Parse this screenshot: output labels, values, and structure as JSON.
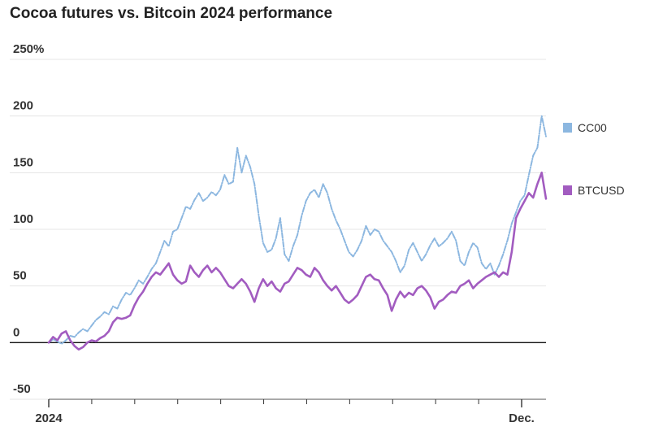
{
  "chart_data": {
    "type": "line",
    "title": "Cocoa futures vs. Bitcoin 2024 performance",
    "xlabel": "",
    "ylabel": "",
    "ylim": [
      -50,
      250
    ],
    "yticks": [
      -50,
      0,
      50,
      100,
      150,
      200,
      250
    ],
    "ytick_labels": [
      "-50",
      "0",
      "50",
      "100",
      "150",
      "200",
      "250%"
    ],
    "xtick_labels": [
      "2024",
      "Dec."
    ],
    "x_month_ticks": 12,
    "x_range_months": [
      0,
      11.6
    ],
    "grid": true,
    "legend_placement": "right",
    "series": [
      {
        "name": "CC00",
        "color": "#8cb7e0",
        "points": [
          [
            0,
            0
          ],
          [
            0.1,
            3
          ],
          [
            0.2,
            1
          ],
          [
            0.3,
            -1
          ],
          [
            0.4,
            2
          ],
          [
            0.5,
            6
          ],
          [
            0.6,
            5
          ],
          [
            0.7,
            9
          ],
          [
            0.8,
            12
          ],
          [
            0.9,
            10
          ],
          [
            1.0,
            15
          ],
          [
            1.1,
            20
          ],
          [
            1.2,
            23
          ],
          [
            1.3,
            27
          ],
          [
            1.4,
            25
          ],
          [
            1.5,
            32
          ],
          [
            1.6,
            30
          ],
          [
            1.7,
            38
          ],
          [
            1.8,
            44
          ],
          [
            1.9,
            42
          ],
          [
            2.0,
            48
          ],
          [
            2.1,
            55
          ],
          [
            2.2,
            52
          ],
          [
            2.3,
            58
          ],
          [
            2.4,
            65
          ],
          [
            2.5,
            70
          ],
          [
            2.6,
            80
          ],
          [
            2.7,
            90
          ],
          [
            2.8,
            85
          ],
          [
            2.9,
            98
          ],
          [
            3.0,
            100
          ],
          [
            3.1,
            110
          ],
          [
            3.2,
            120
          ],
          [
            3.3,
            118
          ],
          [
            3.4,
            126
          ],
          [
            3.5,
            132
          ],
          [
            3.6,
            125
          ],
          [
            3.7,
            128
          ],
          [
            3.8,
            133
          ],
          [
            3.9,
            130
          ],
          [
            4.0,
            135
          ],
          [
            4.1,
            148
          ],
          [
            4.2,
            140
          ],
          [
            4.3,
            142
          ],
          [
            4.4,
            172
          ],
          [
            4.5,
            150
          ],
          [
            4.6,
            165
          ],
          [
            4.7,
            155
          ],
          [
            4.8,
            140
          ],
          [
            4.9,
            112
          ],
          [
            5.0,
            88
          ],
          [
            5.1,
            80
          ],
          [
            5.2,
            82
          ],
          [
            5.3,
            92
          ],
          [
            5.4,
            110
          ],
          [
            5.5,
            78
          ],
          [
            5.6,
            72
          ],
          [
            5.7,
            85
          ],
          [
            5.8,
            95
          ],
          [
            5.9,
            112
          ],
          [
            6.0,
            125
          ],
          [
            6.1,
            132
          ],
          [
            6.2,
            135
          ],
          [
            6.3,
            128
          ],
          [
            6.4,
            140
          ],
          [
            6.5,
            132
          ],
          [
            6.6,
            118
          ],
          [
            6.7,
            108
          ],
          [
            6.8,
            100
          ],
          [
            6.9,
            90
          ],
          [
            7.0,
            80
          ],
          [
            7.1,
            76
          ],
          [
            7.2,
            82
          ],
          [
            7.3,
            90
          ],
          [
            7.4,
            103
          ],
          [
            7.5,
            95
          ],
          [
            7.6,
            100
          ],
          [
            7.7,
            98
          ],
          [
            7.8,
            90
          ],
          [
            7.9,
            85
          ],
          [
            8.0,
            80
          ],
          [
            8.1,
            72
          ],
          [
            8.2,
            62
          ],
          [
            8.3,
            68
          ],
          [
            8.4,
            82
          ],
          [
            8.5,
            88
          ],
          [
            8.6,
            80
          ],
          [
            8.7,
            72
          ],
          [
            8.8,
            78
          ],
          [
            8.9,
            86
          ],
          [
            9.0,
            92
          ],
          [
            9.1,
            85
          ],
          [
            9.2,
            88
          ],
          [
            9.3,
            92
          ],
          [
            9.4,
            98
          ],
          [
            9.5,
            90
          ],
          [
            9.6,
            72
          ],
          [
            9.7,
            68
          ],
          [
            9.8,
            80
          ],
          [
            9.9,
            88
          ],
          [
            10.0,
            84
          ],
          [
            10.1,
            70
          ],
          [
            10.2,
            65
          ],
          [
            10.3,
            70
          ],
          [
            10.4,
            60
          ],
          [
            10.5,
            68
          ],
          [
            10.6,
            78
          ],
          [
            10.7,
            90
          ],
          [
            10.8,
            105
          ],
          [
            10.9,
            115
          ],
          [
            11.0,
            125
          ],
          [
            11.1,
            130
          ],
          [
            11.2,
            148
          ],
          [
            11.3,
            165
          ],
          [
            11.4,
            172
          ],
          [
            11.5,
            200
          ],
          [
            11.6,
            182
          ]
        ]
      },
      {
        "name": "BTCUSD",
        "color": "#a25cc0",
        "points": [
          [
            0,
            0
          ],
          [
            0.1,
            5
          ],
          [
            0.2,
            2
          ],
          [
            0.3,
            8
          ],
          [
            0.4,
            10
          ],
          [
            0.5,
            2
          ],
          [
            0.6,
            -3
          ],
          [
            0.7,
            -6
          ],
          [
            0.8,
            -4
          ],
          [
            0.9,
            0
          ],
          [
            1.0,
            2
          ],
          [
            1.1,
            1
          ],
          [
            1.2,
            4
          ],
          [
            1.3,
            6
          ],
          [
            1.4,
            10
          ],
          [
            1.5,
            18
          ],
          [
            1.6,
            22
          ],
          [
            1.7,
            21
          ],
          [
            1.8,
            22
          ],
          [
            1.9,
            24
          ],
          [
            2.0,
            33
          ],
          [
            2.1,
            40
          ],
          [
            2.2,
            45
          ],
          [
            2.3,
            52
          ],
          [
            2.4,
            58
          ],
          [
            2.5,
            62
          ],
          [
            2.6,
            60
          ],
          [
            2.7,
            65
          ],
          [
            2.8,
            70
          ],
          [
            2.9,
            60
          ],
          [
            3.0,
            55
          ],
          [
            3.1,
            52
          ],
          [
            3.2,
            54
          ],
          [
            3.3,
            68
          ],
          [
            3.4,
            62
          ],
          [
            3.5,
            58
          ],
          [
            3.6,
            64
          ],
          [
            3.7,
            68
          ],
          [
            3.8,
            62
          ],
          [
            3.9,
            66
          ],
          [
            4.0,
            62
          ],
          [
            4.1,
            56
          ],
          [
            4.2,
            50
          ],
          [
            4.3,
            48
          ],
          [
            4.4,
            52
          ],
          [
            4.5,
            56
          ],
          [
            4.6,
            52
          ],
          [
            4.7,
            45
          ],
          [
            4.8,
            36
          ],
          [
            4.9,
            48
          ],
          [
            5.0,
            56
          ],
          [
            5.1,
            50
          ],
          [
            5.2,
            54
          ],
          [
            5.3,
            48
          ],
          [
            5.4,
            45
          ],
          [
            5.5,
            52
          ],
          [
            5.6,
            54
          ],
          [
            5.7,
            60
          ],
          [
            5.8,
            66
          ],
          [
            5.9,
            64
          ],
          [
            6.0,
            60
          ],
          [
            6.1,
            58
          ],
          [
            6.2,
            66
          ],
          [
            6.3,
            62
          ],
          [
            6.4,
            55
          ],
          [
            6.5,
            50
          ],
          [
            6.6,
            46
          ],
          [
            6.7,
            50
          ],
          [
            6.8,
            44
          ],
          [
            6.9,
            38
          ],
          [
            7.0,
            35
          ],
          [
            7.1,
            38
          ],
          [
            7.2,
            42
          ],
          [
            7.3,
            50
          ],
          [
            7.4,
            58
          ],
          [
            7.5,
            60
          ],
          [
            7.6,
            56
          ],
          [
            7.7,
            55
          ],
          [
            7.8,
            48
          ],
          [
            7.9,
            42
          ],
          [
            8.0,
            28
          ],
          [
            8.1,
            38
          ],
          [
            8.2,
            45
          ],
          [
            8.3,
            40
          ],
          [
            8.4,
            44
          ],
          [
            8.5,
            42
          ],
          [
            8.6,
            48
          ],
          [
            8.7,
            50
          ],
          [
            8.8,
            46
          ],
          [
            8.9,
            40
          ],
          [
            9.0,
            30
          ],
          [
            9.1,
            36
          ],
          [
            9.2,
            38
          ],
          [
            9.3,
            42
          ],
          [
            9.4,
            45
          ],
          [
            9.5,
            44
          ],
          [
            9.6,
            50
          ],
          [
            9.7,
            52
          ],
          [
            9.8,
            55
          ],
          [
            9.9,
            48
          ],
          [
            10.0,
            52
          ],
          [
            10.1,
            55
          ],
          [
            10.2,
            58
          ],
          [
            10.3,
            60
          ],
          [
            10.4,
            62
          ],
          [
            10.5,
            58
          ],
          [
            10.6,
            62
          ],
          [
            10.7,
            60
          ],
          [
            10.8,
            80
          ],
          [
            10.9,
            110
          ],
          [
            11.0,
            118
          ],
          [
            11.1,
            125
          ],
          [
            11.2,
            132
          ],
          [
            11.3,
            128
          ],
          [
            11.4,
            140
          ],
          [
            11.5,
            150
          ],
          [
            11.6,
            127
          ]
        ]
      }
    ]
  }
}
